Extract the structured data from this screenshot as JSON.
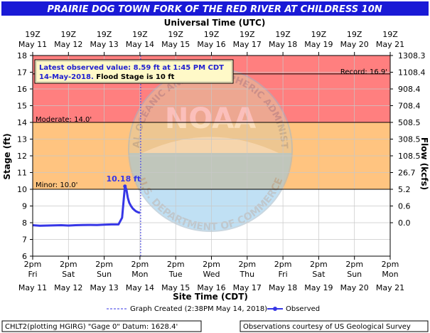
{
  "title": "PRAIRIE DOG TOWN FORK OF THE RED RIVER AT CHILDRESS 10N",
  "top_axis_title": "Universal Time (UTC)",
  "bottom_axis_title": "Site Time (CDT)",
  "y_left_label": "Stage (ft)",
  "y_right_label": "Flow (kcfs)",
  "utc_ticks": [
    {
      "time": "19Z",
      "date": "May 11"
    },
    {
      "time": "19Z",
      "date": "May 12"
    },
    {
      "time": "19Z",
      "date": "May 13"
    },
    {
      "time": "19Z",
      "date": "May 14"
    },
    {
      "time": "19Z",
      "date": "May 15"
    },
    {
      "time": "19Z",
      "date": "May 16"
    },
    {
      "time": "19Z",
      "date": "May 17"
    },
    {
      "time": "19Z",
      "date": "May 18"
    },
    {
      "time": "19Z",
      "date": "May 19"
    },
    {
      "time": "19Z",
      "date": "May 20"
    },
    {
      "time": "19Z",
      "date": "May 21"
    }
  ],
  "site_ticks": [
    {
      "time": "2pm",
      "day": "Fri",
      "date": "May 11"
    },
    {
      "time": "2pm",
      "day": "Sat",
      "date": "May 12"
    },
    {
      "time": "2pm",
      "day": "Sun",
      "date": "May 13"
    },
    {
      "time": "2pm",
      "day": "Mon",
      "date": "May 14"
    },
    {
      "time": "2pm",
      "day": "Tue",
      "date": "May 15"
    },
    {
      "time": "2pm",
      "day": "Wed",
      "date": "May 16"
    },
    {
      "time": "2pm",
      "day": "Thu",
      "date": "May 17"
    },
    {
      "time": "2pm",
      "day": "Fri",
      "date": "May 18"
    },
    {
      "time": "2pm",
      "day": "Sat",
      "date": "May 19"
    },
    {
      "time": "2pm",
      "day": "Sun",
      "date": "May 20"
    },
    {
      "time": "2pm",
      "day": "Mon",
      "date": "May 21"
    }
  ],
  "info_box": {
    "line1": "Latest observed value: 8.59 ft at 1:45 PM CDT",
    "line2_date": "14-May-2018.",
    "line2_flood": " Flood Stage is 10 ft"
  },
  "record_label": "Record: 16.9'",
  "moderate_label": "Moderate: 14.0'",
  "minor_label": "Minor: 10.0'",
  "peak_label": "10.18 ft",
  "legend": {
    "created": "Graph Created (2:38PM May 14, 2018)",
    "observed": "Observed"
  },
  "footer_left": "CHLT2(plotting HGIRG) \"Gage 0\" Datum: 1628.4'",
  "footer_right": "Observations courtesy of US Geological Survey",
  "watermark_text": {
    "logo": "NOAA",
    "top_arc": "NATIONAL OCEANIC AND ATMOSPHERIC ADMINISTRATION",
    "bottom_arc": "U.S. DEPARTMENT OF COMMERCE"
  },
  "colors": {
    "title_bg": "#1a1ad6",
    "major_band": "#ff7f7f",
    "moderate_band": "#ffc480",
    "minor_band": "#ffff80",
    "observed_line": "#3636e6",
    "watermark_blue": "#8ec8ec"
  },
  "chart_data": {
    "type": "line",
    "x_unit": "days since May 11 2pm CDT",
    "xlim": [
      0,
      10
    ],
    "ylim": [
      6,
      18
    ],
    "y_ticks": [
      6,
      7,
      8,
      9,
      10,
      11,
      12,
      13,
      14,
      15,
      16,
      17,
      18
    ],
    "flow_ticks": [
      {
        "stage": 8,
        "label": "0.0"
      },
      {
        "stage": 9,
        "label": "0.6"
      },
      {
        "stage": 10,
        "label": "5.2"
      },
      {
        "stage": 11,
        "label": "26.7"
      },
      {
        "stage": 12,
        "label": "108.5"
      },
      {
        "stage": 13,
        "label": "308.5"
      },
      {
        "stage": 14,
        "label": "508.5"
      },
      {
        "stage": 15,
        "label": "708.4"
      },
      {
        "stage": 16,
        "label": "908.4"
      },
      {
        "stage": 17,
        "label": "1108.4"
      },
      {
        "stage": 18,
        "label": "1308.3"
      }
    ],
    "flood_categories": {
      "minor": 10.0,
      "moderate": 14.0,
      "major": 18.0,
      "record": 16.9
    },
    "graph_created_x": 3.02,
    "series": [
      {
        "name": "Observed",
        "x": [
          0.0,
          0.2,
          0.4,
          0.6,
          0.8,
          1.0,
          1.2,
          1.4,
          1.6,
          1.8,
          2.0,
          2.2,
          2.4,
          2.5,
          2.55,
          2.58,
          2.62,
          2.66,
          2.7,
          2.75,
          2.8,
          2.85,
          2.9,
          2.95,
          3.0
        ],
        "y": [
          7.85,
          7.82,
          7.83,
          7.84,
          7.85,
          7.83,
          7.85,
          7.86,
          7.87,
          7.86,
          7.88,
          7.9,
          7.9,
          8.3,
          9.5,
          10.18,
          10.0,
          9.5,
          9.2,
          9.0,
          8.85,
          8.75,
          8.67,
          8.62,
          8.59
        ]
      }
    ],
    "peak": {
      "x": 2.58,
      "y": 10.18
    }
  }
}
